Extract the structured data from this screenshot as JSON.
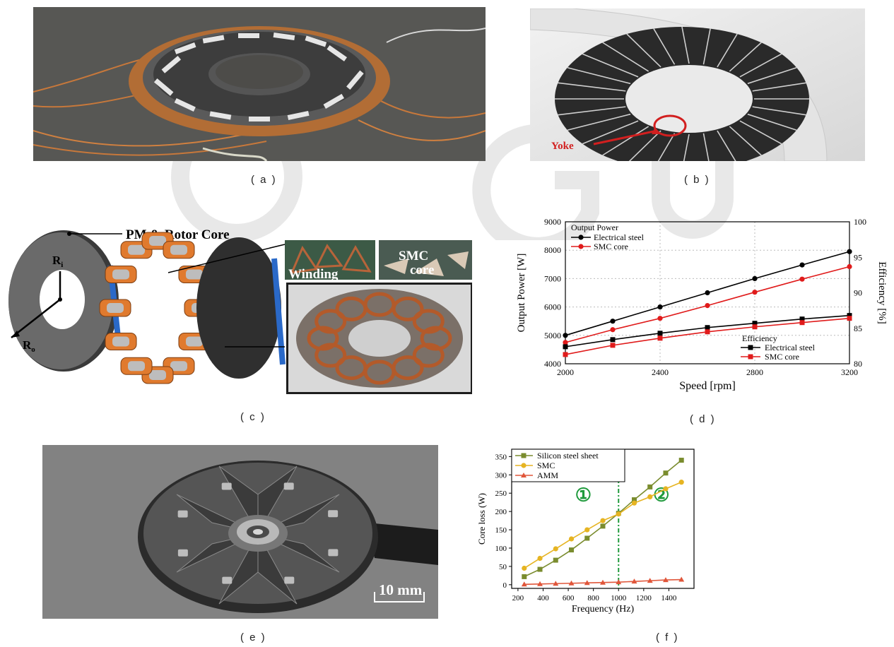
{
  "captions": {
    "a": "( a )",
    "b": "( b )",
    "c": "( c )",
    "d": "( d )",
    "e": "( e )",
    "f": "( f )"
  },
  "panel_b": {
    "label": "Yoke"
  },
  "panel_c": {
    "label_rotor": "PM & Rotor Core",
    "label_ri": "R",
    "label_ri_sub": "i",
    "label_ro": "R",
    "label_ro_sub": "o",
    "label_winding": "Winding",
    "label_smc": "SMC core"
  },
  "panel_e": {
    "scale_label": "10 mm"
  },
  "chart_data": [
    {
      "id": "d",
      "type": "line",
      "xlabel": "Speed [rpm]",
      "ylabel": "Output Power [W]",
      "y2label": "Efficiency [%]",
      "xlim": [
        2000,
        3200
      ],
      "ylim": [
        4000,
        9000
      ],
      "y2lim": [
        80,
        100
      ],
      "xticks": [
        2000,
        2400,
        2800,
        3200
      ],
      "yticks": [
        4000,
        5000,
        6000,
        7000,
        8000,
        9000
      ],
      "y2ticks": [
        80,
        85,
        90,
        95,
        100
      ],
      "legend_power_title": "Output Power",
      "legend_eff_title": "Efficiency",
      "x": [
        2000,
        2200,
        2400,
        2600,
        2800,
        3000,
        3200
      ],
      "series": [
        {
          "name": "Electrical steel",
          "axis": "left",
          "marker": "circle",
          "color": "#000000",
          "values": [
            5000,
            5500,
            6000,
            6500,
            7000,
            7480,
            7950
          ]
        },
        {
          "name": "SMC core",
          "axis": "left",
          "marker": "circle",
          "color": "#e01b1b",
          "values": [
            4750,
            5200,
            5600,
            6050,
            6520,
            6980,
            7420
          ]
        },
        {
          "name": "Electrical steel",
          "axis": "right",
          "marker": "square",
          "color": "#000000",
          "values": [
            82.4,
            83.4,
            84.3,
            85.1,
            85.7,
            86.3,
            86.8
          ]
        },
        {
          "name": "SMC core",
          "axis": "right",
          "marker": "square",
          "color": "#e01b1b",
          "values": [
            81.3,
            82.6,
            83.6,
            84.5,
            85.2,
            85.8,
            86.4
          ]
        }
      ]
    },
    {
      "id": "f",
      "type": "line",
      "xlabel": "Frequency (Hz)",
      "ylabel": "Core loss (W)",
      "xlim": [
        150,
        1600
      ],
      "ylim": [
        -10,
        370
      ],
      "xticks": [
        200,
        400,
        600,
        800,
        1000,
        1200,
        1400
      ],
      "yticks": [
        0,
        50,
        100,
        150,
        200,
        250,
        300,
        350
      ],
      "vline": 1000,
      "region_labels": [
        "①",
        "②"
      ],
      "x": [
        250,
        375,
        500,
        625,
        750,
        875,
        1000,
        1125,
        1250,
        1375,
        1500
      ],
      "series": [
        {
          "name": "Silicon steel sheet",
          "marker": "square",
          "color": "#7a8c2e",
          "values": [
            22,
            42,
            67,
            95,
            127,
            160,
            195,
            232,
            267,
            305,
            340
          ]
        },
        {
          "name": "SMC",
          "marker": "circle",
          "color": "#e6b422",
          "values": [
            45,
            72,
            98,
            125,
            150,
            175,
            193,
            223,
            240,
            262,
            280
          ]
        },
        {
          "name": "AMM",
          "marker": "triangle",
          "color": "#e0563a",
          "values": [
            1,
            2,
            3,
            4,
            5,
            6,
            7,
            9,
            11,
            13,
            14
          ]
        }
      ]
    }
  ]
}
